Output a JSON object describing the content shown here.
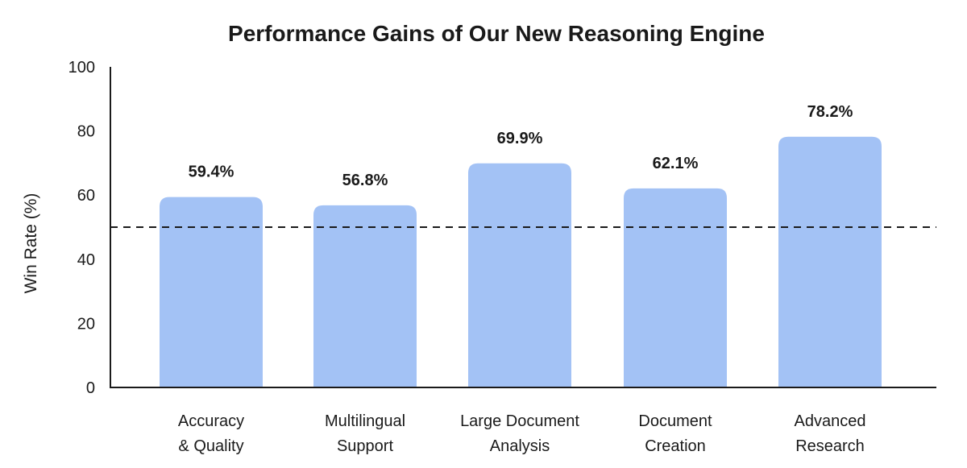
{
  "chart_data": {
    "type": "bar",
    "title": "Performance Gains of Our New Reasoning Engine",
    "xlabel": "",
    "ylabel": "Win Rate (%)",
    "ylim": [
      0,
      100
    ],
    "yticks": [
      0,
      20,
      40,
      60,
      80,
      100
    ],
    "grid": false,
    "legend": "none",
    "reference_line": {
      "value": 50,
      "style": "dashed"
    },
    "categories": [
      [
        "Accuracy",
        "& Quality"
      ],
      [
        "Multilingual",
        "Support"
      ],
      [
        "Large Document",
        "Analysis"
      ],
      [
        "Document",
        "Creation"
      ],
      [
        "Advanced",
        "Research"
      ]
    ],
    "values": [
      59.4,
      56.8,
      69.9,
      62.1,
      78.2
    ],
    "data_labels": [
      "59.4%",
      "56.8%",
      "69.9%",
      "62.1%",
      "78.2%"
    ],
    "colors": {
      "bar": "#a3c2f5",
      "axis": "#1a1a1a",
      "reference_line": "#1a1a1a"
    }
  }
}
